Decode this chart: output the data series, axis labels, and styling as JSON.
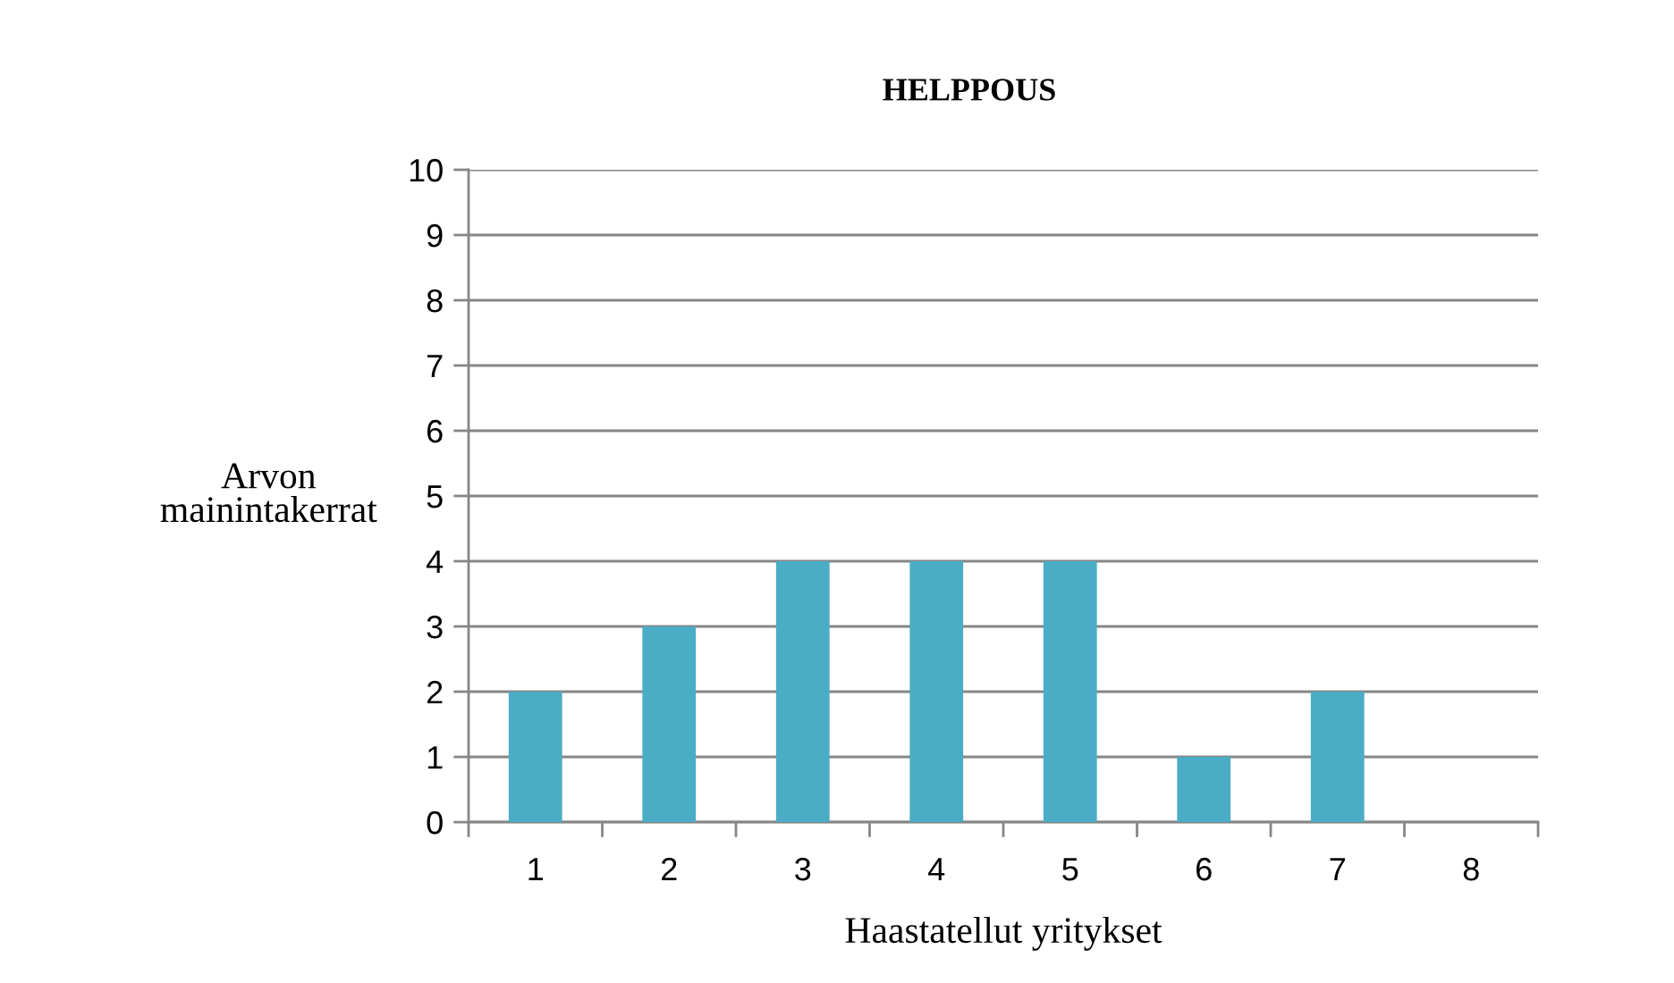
{
  "chart_data": {
    "type": "bar",
    "title": "HELPPOUS",
    "xlabel": "Haastatellut yritykset",
    "ylabel": "Arvon\nmainintakerrat",
    "categories": [
      "1",
      "2",
      "3",
      "4",
      "5",
      "6",
      "7",
      "8"
    ],
    "values": [
      2,
      3,
      4,
      4,
      4,
      1,
      2,
      0
    ],
    "color": "#4bacc6",
    "ylim": [
      0,
      10
    ],
    "yticks": [
      0,
      1,
      2,
      3,
      4,
      5,
      6,
      7,
      8,
      9,
      10
    ],
    "grid": "y"
  }
}
